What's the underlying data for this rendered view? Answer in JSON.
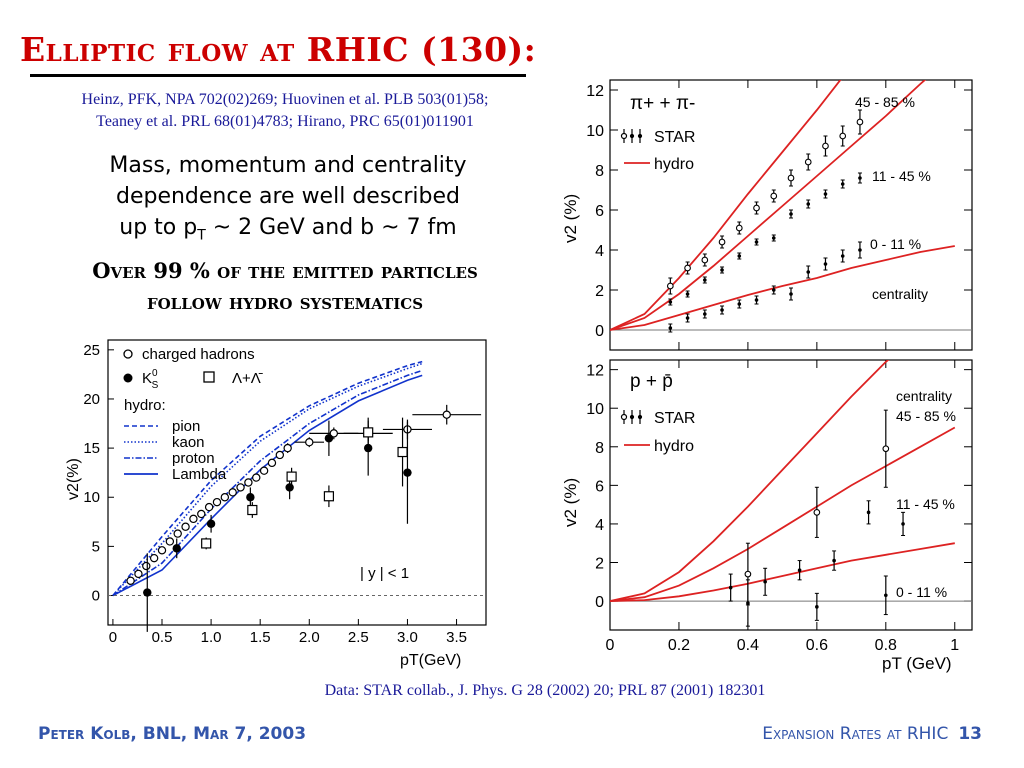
{
  "slide": {
    "title": "Elliptic flow at RHIC (130):",
    "refs_line1": "Heinz, PFK, NPA 702(02)269; Huovinen et al. PLB 503(01)58;",
    "refs_line2": "Teaney et al. PRL 68(01)4783; Hirano, PRC 65(01)011901",
    "summary_line1": "Mass, momentum and centrality",
    "summary_line2": "dependence are well described",
    "summary_line3_a": "up to p",
    "summary_line3_sub": "T",
    "summary_line3_b": " ~ 2 GeV and b ~ 7 fm",
    "emph_line1": "Over 99 % of the emitted particles",
    "emph_line2": "follow hydro systematics",
    "credit": "Data: STAR collab.,  J. Phys. G 28 (2002) 20; PRL 87 (2001) 182301",
    "footer_left": "Peter Kolb, BNL, Mar 7, 2003",
    "footer_right": "Expansion Rates at RHIC",
    "page_number": "13"
  },
  "colors": {
    "title": "#cc0000",
    "refs": "#1a1a99",
    "footer": "#3355aa",
    "hydro_red": "#dd2222",
    "hydro_blue": "#1133cc"
  },
  "chart_data": [
    {
      "type": "scatter",
      "xlabel": "pT(GeV)",
      "ylabel": "v2(%)",
      "xlim": [
        -0.05,
        3.8
      ],
      "ylim": [
        -3,
        26
      ],
      "xticks": [
        "0",
        "0.5",
        "1.0",
        "1.5",
        "2.0",
        "2.5",
        "3.0",
        "3.5"
      ],
      "yticks": [
        "0",
        "5",
        "10",
        "15",
        "20",
        "25"
      ],
      "legend_data": [
        "charged hadrons",
        "K",
        "Λ+Λ̄"
      ],
      "legend_K_super": "0",
      "legend_K_sub": "S",
      "legend_hydro_title": "hydro:",
      "legend_hydro": [
        "pion",
        "kaon",
        "proton",
        "Lambda"
      ],
      "annotation": "| y | < 1",
      "series": [
        {
          "name": "charged hadrons",
          "marker": "open-circle",
          "x": [
            0.18,
            0.26,
            0.34,
            0.42,
            0.5,
            0.58,
            0.66,
            0.74,
            0.82,
            0.9,
            0.98,
            1.06,
            1.14,
            1.22,
            1.3,
            1.38,
            1.46,
            1.54,
            1.62,
            1.7,
            1.78,
            2.0,
            2.25,
            2.6,
            3.0,
            3.4
          ],
          "y": [
            1.5,
            2.2,
            3.0,
            3.8,
            4.6,
            5.5,
            6.3,
            7.0,
            7.8,
            8.3,
            9.0,
            9.5,
            10.0,
            10.5,
            11.0,
            11.5,
            12.0,
            12.7,
            13.5,
            14.3,
            15.0,
            15.6,
            16.5,
            16.5,
            16.9,
            18.4
          ],
          "yerr": [
            0.2,
            0.2,
            0.2,
            0.2,
            0.2,
            0.2,
            0.2,
            0.3,
            0.3,
            0.3,
            0.3,
            0.3,
            0.3,
            0.3,
            0.3,
            0.3,
            0.3,
            0.4,
            0.4,
            0.4,
            0.5,
            0.5,
            0.6,
            0.8,
            1.0,
            1.0
          ],
          "xerr": [
            0,
            0,
            0,
            0,
            0,
            0,
            0,
            0,
            0,
            0,
            0,
            0,
            0,
            0,
            0,
            0,
            0,
            0,
            0,
            0,
            0,
            0.15,
            0.25,
            0.25,
            0.25,
            0.35
          ]
        },
        {
          "name": "K0S",
          "marker": "filled-circle",
          "x": [
            0.35,
            0.65,
            1.0,
            1.4,
            1.8,
            2.2,
            2.6,
            3.0
          ],
          "y": [
            0.3,
            4.8,
            7.3,
            10.0,
            11.0,
            16.0,
            15.0,
            12.5
          ],
          "yerr": [
            4.0,
            1.0,
            0.9,
            1.0,
            1.2,
            1.8,
            2.8,
            5.2
          ]
        },
        {
          "name": "Λ+Λ̄",
          "marker": "open-square",
          "x": [
            0.95,
            1.42,
            1.82,
            2.2,
            2.6,
            2.95
          ],
          "y": [
            5.3,
            8.7,
            12.1,
            10.1,
            16.6,
            14.6
          ],
          "yerr": [
            0.6,
            0.8,
            0.9,
            1.1,
            1.5,
            3.5
          ]
        }
      ],
      "hydro_curves": [
        {
          "name": "pion",
          "style": "dashed",
          "x": [
            0,
            0.5,
            1.0,
            1.5,
            2.0,
            2.5,
            3.0,
            3.15
          ],
          "y": [
            0,
            6.0,
            11.7,
            16.2,
            19.3,
            21.6,
            23.4,
            23.8
          ]
        },
        {
          "name": "kaon",
          "style": "dotted",
          "x": [
            0,
            0.5,
            1.0,
            1.5,
            2.0,
            2.5,
            3.0,
            3.15
          ],
          "y": [
            0,
            5.3,
            11.1,
            15.7,
            19.0,
            21.3,
            23.1,
            23.6
          ]
        },
        {
          "name": "proton",
          "style": "dashdot",
          "x": [
            0,
            0.5,
            1.0,
            1.5,
            2.0,
            2.5,
            3.0,
            3.15
          ],
          "y": [
            0,
            3.3,
            8.8,
            13.7,
            17.5,
            20.4,
            22.4,
            22.9
          ]
        },
        {
          "name": "Lambda",
          "style": "solid",
          "x": [
            0,
            0.5,
            1.0,
            1.5,
            2.0,
            2.5,
            3.0,
            3.15
          ],
          "y": [
            0,
            2.6,
            7.8,
            12.8,
            16.8,
            19.8,
            21.9,
            22.4
          ]
        }
      ]
    },
    {
      "type": "scatter",
      "title": "π+ + π-",
      "ylabel": "v2 (%)",
      "xlim": [
        0,
        1.05
      ],
      "ylim": [
        -1,
        12.5
      ],
      "yticks": [
        "0",
        "2",
        "4",
        "6",
        "8",
        "10",
        "12"
      ],
      "legend": [
        "STAR",
        "hydro"
      ],
      "labels": [
        "45 - 85 %",
        "11 - 45 %",
        "0 - 11 %",
        "centrality"
      ],
      "series": [
        {
          "name": "45 - 85 %",
          "x": [
            0.175,
            0.225,
            0.275,
            0.325,
            0.375,
            0.425,
            0.475,
            0.525,
            0.575,
            0.625,
            0.675,
            0.725
          ],
          "y": [
            2.2,
            3.1,
            3.5,
            4.4,
            5.1,
            6.1,
            6.7,
            7.6,
            8.4,
            9.2,
            9.7,
            10.4
          ],
          "yerr": [
            0.4,
            0.3,
            0.3,
            0.3,
            0.3,
            0.3,
            0.3,
            0.4,
            0.4,
            0.5,
            0.5,
            0.6
          ]
        },
        {
          "name": "11 - 45 %",
          "x": [
            0.175,
            0.225,
            0.275,
            0.325,
            0.375,
            0.425,
            0.475,
            0.525,
            0.575,
            0.625,
            0.675,
            0.725
          ],
          "y": [
            1.4,
            1.8,
            2.5,
            3.0,
            3.7,
            4.4,
            4.6,
            5.8,
            6.3,
            6.8,
            7.3,
            7.6
          ],
          "yerr": [
            0.15,
            0.15,
            0.15,
            0.15,
            0.15,
            0.15,
            0.15,
            0.2,
            0.2,
            0.2,
            0.2,
            0.25
          ]
        },
        {
          "name": "0 - 11 %",
          "x": [
            0.175,
            0.225,
            0.275,
            0.325,
            0.375,
            0.425,
            0.475,
            0.525,
            0.575,
            0.625,
            0.675,
            0.725
          ],
          "y": [
            0.1,
            0.6,
            0.8,
            1.0,
            1.3,
            1.5,
            2.0,
            1.8,
            2.9,
            3.3,
            3.7,
            4.0
          ],
          "yerr": [
            0.2,
            0.2,
            0.2,
            0.2,
            0.2,
            0.2,
            0.2,
            0.3,
            0.3,
            0.3,
            0.3,
            0.4
          ]
        }
      ],
      "hydro_curves": [
        {
          "name": "45 - 85 %",
          "x": [
            0,
            0.1,
            0.2,
            0.3,
            0.4,
            0.5,
            0.6,
            0.7,
            0.8,
            0.88
          ],
          "y": [
            0,
            0.8,
            2.6,
            4.6,
            6.8,
            8.9,
            11.0,
            13.2,
            15.4,
            17.0
          ]
        },
        {
          "name": "11 - 45 %",
          "x": [
            0,
            0.1,
            0.2,
            0.3,
            0.4,
            0.5,
            0.6,
            0.7,
            0.8,
            0.9,
            1.0
          ],
          "y": [
            0,
            0.6,
            1.8,
            3.2,
            4.7,
            6.2,
            7.7,
            9.2,
            10.7,
            12.3,
            13.8
          ]
        },
        {
          "name": "0 - 11 %",
          "x": [
            0,
            0.1,
            0.2,
            0.3,
            0.4,
            0.5,
            0.6,
            0.7,
            0.8,
            0.9,
            1.0
          ],
          "y": [
            0,
            0.25,
            0.75,
            1.25,
            1.75,
            2.2,
            2.6,
            3.1,
            3.5,
            3.9,
            4.2
          ]
        }
      ]
    },
    {
      "type": "scatter",
      "title": "p + p̄",
      "xlabel": "pT (GeV)",
      "ylabel": "v2 (%)",
      "xlim": [
        0,
        1.05
      ],
      "ylim": [
        -1.5,
        12.5
      ],
      "xticks": [
        "0",
        "0.2",
        "0.4",
        "0.6",
        "0.8",
        "1"
      ],
      "yticks": [
        "0",
        "2",
        "4",
        "6",
        "8",
        "10",
        "12"
      ],
      "legend": [
        "STAR",
        "hydro"
      ],
      "labels": [
        "centrality",
        "45 - 85 %",
        "11 - 45 %",
        "0 - 11 %"
      ],
      "series": [
        {
          "name": "45 - 85 %",
          "x": [
            0.4,
            0.6,
            0.8
          ],
          "y": [
            1.4,
            4.6,
            7.9
          ],
          "yerr": [
            1.6,
            1.3,
            2.0
          ]
        },
        {
          "name": "11 - 45 %",
          "x": [
            0.35,
            0.45,
            0.55,
            0.65,
            0.75,
            0.85
          ],
          "y": [
            0.7,
            1.0,
            1.6,
            2.1,
            4.6,
            4.0
          ],
          "yerr": [
            0.7,
            0.7,
            0.5,
            0.5,
            0.6,
            0.6
          ]
        },
        {
          "name": "0 - 11 %",
          "x": [
            0.4,
            0.6,
            0.8
          ],
          "y": [
            -0.1,
            -0.3,
            0.3
          ],
          "yerr": [
            1.2,
            0.7,
            1.0
          ]
        }
      ],
      "hydro_curves": [
        {
          "name": "45 - 85 %",
          "x": [
            0,
            0.1,
            0.2,
            0.3,
            0.4,
            0.5,
            0.6,
            0.7,
            0.8,
            0.88
          ],
          "y": [
            0,
            0.4,
            1.5,
            3.1,
            4.9,
            6.8,
            8.7,
            10.6,
            12.4,
            13.6
          ]
        },
        {
          "name": "11 - 45 %",
          "x": [
            0,
            0.1,
            0.2,
            0.3,
            0.4,
            0.5,
            0.6,
            0.7,
            0.8,
            0.9,
            1.0
          ],
          "y": [
            0,
            0.2,
            0.8,
            1.7,
            2.7,
            3.8,
            4.9,
            6.0,
            7.0,
            8.0,
            9.0
          ]
        },
        {
          "name": "0 - 11 %",
          "x": [
            0,
            0.1,
            0.2,
            0.3,
            0.4,
            0.5,
            0.6,
            0.7,
            0.8,
            0.9,
            1.0
          ],
          "y": [
            0,
            0.05,
            0.25,
            0.55,
            0.9,
            1.3,
            1.7,
            2.1,
            2.4,
            2.7,
            3.0
          ]
        }
      ]
    }
  ]
}
